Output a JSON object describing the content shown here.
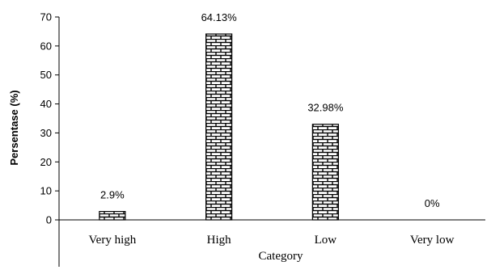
{
  "chart_data": {
    "type": "bar",
    "title": "",
    "xlabel": "Category",
    "ylabel": "Persentase (%)",
    "categories": [
      "Very high",
      "High",
      "Low",
      "Very low"
    ],
    "values": [
      2.9,
      64.13,
      32.98,
      0
    ],
    "data_labels": [
      "2.9%",
      "64.13%",
      "32.98%",
      "0%"
    ],
    "yticks": [
      "0",
      "10",
      "20",
      "30",
      "40",
      "50",
      "60",
      "70"
    ],
    "ylim": [
      0,
      70
    ],
    "grid": false,
    "legend": "none",
    "bar_fill": "brick pattern",
    "bar_color": "#000000",
    "background_color": "#ffffff"
  }
}
